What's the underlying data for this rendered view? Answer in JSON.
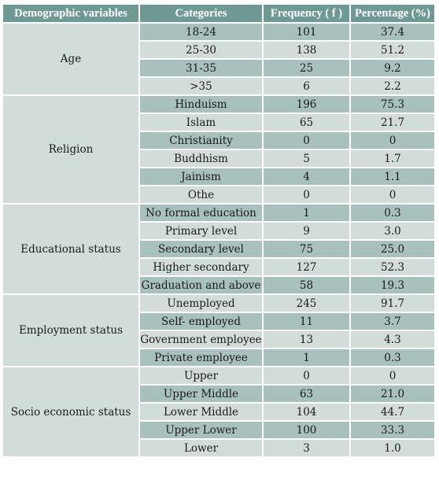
{
  "headers": [
    "Demographic variables",
    "Categories",
    "Frequency ( f )",
    "Percentage (%)"
  ],
  "groups": [
    {
      "label": "Age",
      "rows": [
        {
          "category": "18-24",
          "frequency": "101",
          "percentage": "37.4"
        },
        {
          "category": "25-30",
          "frequency": "138",
          "percentage": "51.2"
        },
        {
          "category": "31-35",
          "frequency": "25",
          "percentage": "9.2"
        },
        {
          "category": ">35",
          "frequency": "6",
          "percentage": "2.2"
        }
      ]
    },
    {
      "label": "Religion",
      "rows": [
        {
          "category": "Hinduism",
          "frequency": "196",
          "percentage": "75.3"
        },
        {
          "category": "Islam",
          "frequency": "65",
          "percentage": "21.7"
        },
        {
          "category": "Christianity",
          "frequency": "0",
          "percentage": "0"
        },
        {
          "category": "Buddhism",
          "frequency": "5",
          "percentage": "1.7"
        },
        {
          "category": "Jainism",
          "frequency": "4",
          "percentage": "1.1"
        },
        {
          "category": "Othe",
          "frequency": "0",
          "percentage": "0"
        }
      ]
    },
    {
      "label": "Educational status",
      "rows": [
        {
          "category": "No formal education",
          "frequency": "1",
          "percentage": "0.3"
        },
        {
          "category": "Primary level",
          "frequency": "9",
          "percentage": "3.0"
        },
        {
          "category": "Secondary level",
          "frequency": "75",
          "percentage": "25.0"
        },
        {
          "category": "Higher secondary",
          "frequency": "127",
          "percentage": "52.3"
        },
        {
          "category": "Graduation and above",
          "frequency": "58",
          "percentage": "19.3"
        }
      ]
    },
    {
      "label": "Employment status",
      "rows": [
        {
          "category": "Unemployed",
          "frequency": "245",
          "percentage": "91.7"
        },
        {
          "category": "Self- employed",
          "frequency": "11",
          "percentage": "3.7"
        },
        {
          "category": "Government employee",
          "frequency": "13",
          "percentage": "4.3"
        },
        {
          "category": "Private employee",
          "frequency": "1",
          "percentage": "0.3"
        }
      ]
    },
    {
      "label": "Socio economic status",
      "rows": [
        {
          "category": "Upper",
          "frequency": "0",
          "percentage": "0"
        },
        {
          "category": "Upper Middle",
          "frequency": "63",
          "percentage": "21.0"
        },
        {
          "category": "Lower Middle",
          "frequency": "104",
          "percentage": "44.7"
        },
        {
          "category": "Upper Lower",
          "frequency": "100",
          "percentage": "33.3"
        },
        {
          "category": "Lower",
          "frequency": "3",
          "percentage": "1.0"
        }
      ]
    }
  ]
}
